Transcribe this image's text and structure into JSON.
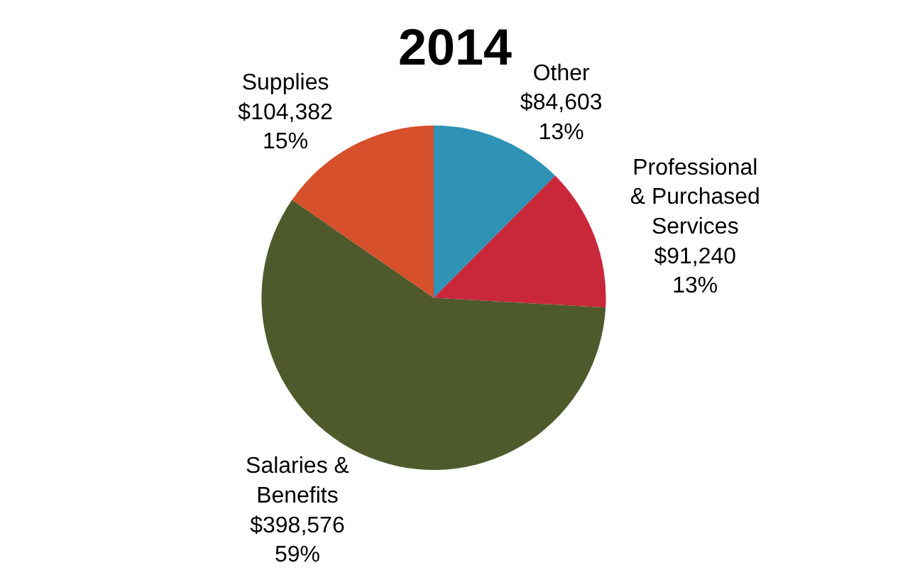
{
  "chart_data": {
    "type": "pie",
    "title": "2014",
    "categories": [
      "Other",
      "Professional & Purchased Services",
      "Salaries & Benefits",
      "Supplies"
    ],
    "values": [
      84603,
      91240,
      398576,
      104382
    ],
    "value_labels": [
      "$84,603\n13%",
      "$91,240\n13%",
      "$398,576\n59%",
      "$104,382\n15%"
    ],
    "colors": [
      "#2e93b5",
      "#c8283a",
      "#4e5a2c",
      "#d5502b"
    ],
    "legend": false
  }
}
